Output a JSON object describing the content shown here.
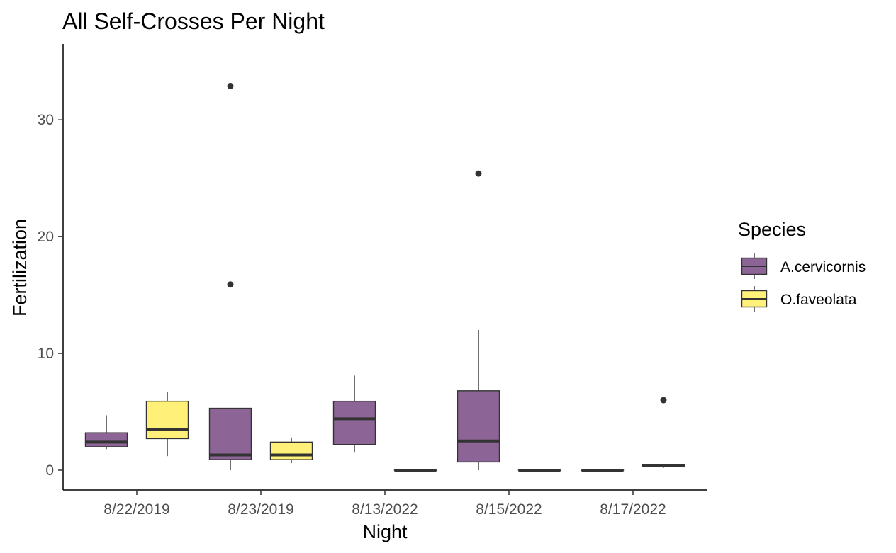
{
  "chart_data": {
    "type": "boxplot",
    "title": "All Self-Crosses Per Night",
    "xlabel": "Night",
    "ylabel": "Fertilization",
    "ylim": [
      -1.7,
      36.5
    ],
    "y_ticks": [
      0,
      10,
      20,
      30
    ],
    "grid": false,
    "legend_position": "right",
    "legend_title": "Species",
    "categories": [
      "8/22/2019",
      "8/23/2019",
      "8/13/2022",
      "8/15/2022",
      "8/17/2022"
    ],
    "series": [
      {
        "name": "A.cervicornis",
        "color": "#8c6496",
        "boxes": [
          {
            "category": "8/22/2019",
            "min": 1.8,
            "q1": 2.0,
            "median": 2.4,
            "q3": 3.2,
            "max": 4.7,
            "outliers": []
          },
          {
            "category": "8/23/2019",
            "min": 0.0,
            "q1": 0.9,
            "median": 1.3,
            "q3": 5.3,
            "max": 5.3,
            "outliers": [
              15.9,
              32.9
            ]
          },
          {
            "category": "8/13/2022",
            "min": 1.5,
            "q1": 2.2,
            "median": 4.4,
            "q3": 5.9,
            "max": 8.1,
            "outliers": []
          },
          {
            "category": "8/15/2022",
            "min": 0.0,
            "q1": 0.7,
            "median": 2.5,
            "q3": 6.8,
            "max": 12.0,
            "outliers": [
              25.4
            ]
          },
          {
            "category": "8/17/2022",
            "min": 0.0,
            "q1": 0.0,
            "median": 0.0,
            "q3": 0.0,
            "max": 0.0,
            "outliers": []
          }
        ]
      },
      {
        "name": "O.faveolata",
        "color": "#fff07a",
        "boxes": [
          {
            "category": "8/22/2019",
            "min": 1.2,
            "q1": 2.7,
            "median": 3.5,
            "q3": 5.9,
            "max": 6.7,
            "outliers": []
          },
          {
            "category": "8/23/2019",
            "min": 0.6,
            "q1": 0.9,
            "median": 1.3,
            "q3": 2.4,
            "max": 2.8,
            "outliers": []
          },
          {
            "category": "8/13/2022",
            "min": 0.0,
            "q1": 0.0,
            "median": 0.0,
            "q3": 0.0,
            "max": 0.0,
            "outliers": []
          },
          {
            "category": "8/15/2022",
            "min": 0.0,
            "q1": 0.0,
            "median": 0.0,
            "q3": 0.0,
            "max": 0.0,
            "outliers": []
          },
          {
            "category": "8/17/2022",
            "min": 0.2,
            "q1": 0.3,
            "median": 0.4,
            "q3": 0.5,
            "max": 0.5,
            "outliers": [
              6.0
            ]
          }
        ]
      }
    ]
  }
}
